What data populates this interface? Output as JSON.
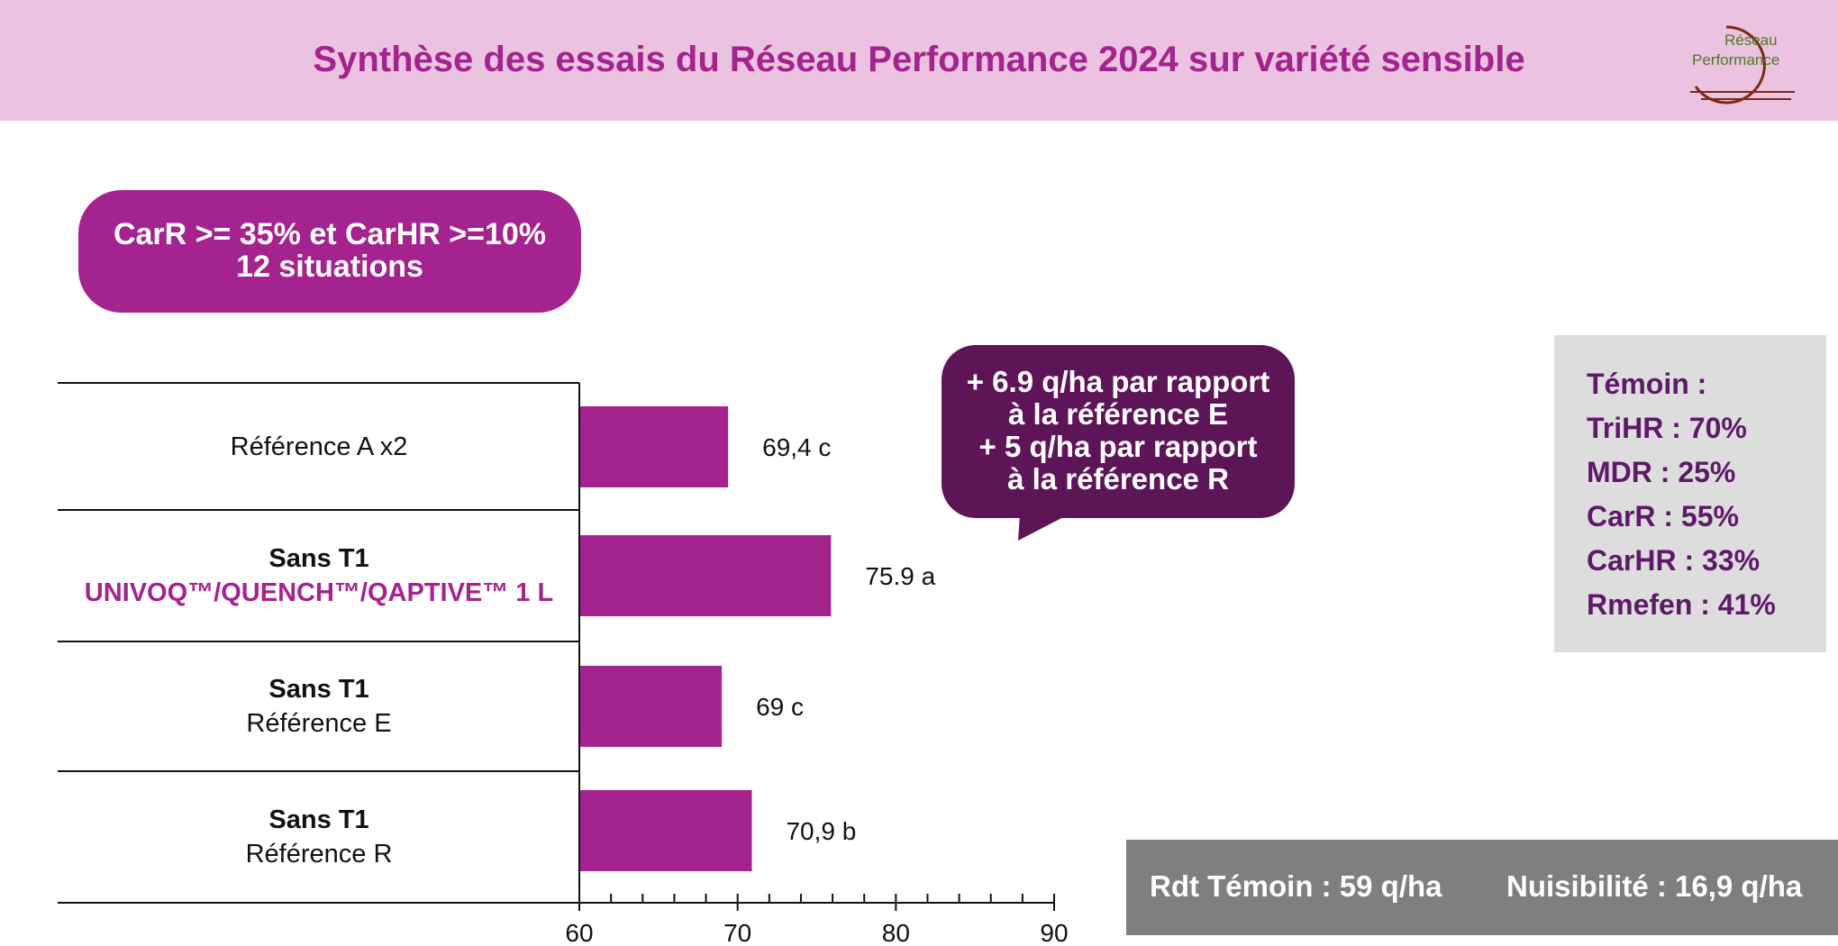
{
  "header": {
    "title": "Synthèse des essais du Réseau Performance 2024 sur variété sensible",
    "logo_text_top": "Réseau",
    "logo_text_bottom": "Performance"
  },
  "condition_box": {
    "line1": "CarR >= 35% et CarHR >=10%",
    "line2": "12 situations"
  },
  "rows": [
    {
      "line1": "Référence A x2",
      "line1_bold": false,
      "line2": "",
      "line2_style": ""
    },
    {
      "line1": "Sans T1",
      "line1_bold": true,
      "line2": "UNIVOQ™/QUENCH™/QAPTIVE™ 1 L",
      "line2_style": "accent"
    },
    {
      "line1": "Sans T1",
      "line1_bold": true,
      "line2": "Référence E",
      "line2_style": "normal"
    },
    {
      "line1": "Sans T1",
      "line1_bold": true,
      "line2": "Référence R",
      "line2_style": "normal"
    }
  ],
  "callout": {
    "line1": "+ 6.9 q/ha par rapport",
    "line2": "à la référence E",
    "line3": "+ 5 q/ha par rapport",
    "line4": "à la référence R"
  },
  "witness": {
    "title": "Témoin :",
    "items": [
      "TriHR : 70%",
      "MDR : 25%",
      "CarR : 55%",
      "CarHR : 33%",
      "Rmefen : 41%"
    ]
  },
  "footer": {
    "yield": "Rdt Témoin : 59 q/ha",
    "nuisance": "Nuisibilité : 16,9 q/ha"
  },
  "colors": {
    "accent": "#a4238f",
    "bar": "#a4238f",
    "callout": "#5e1558",
    "header_bg": "#ebc2df",
    "witness_text": "#5e1a68",
    "footer_bg": "#7f7f7f"
  },
  "chart_data": {
    "type": "bar",
    "orientation": "horizontal",
    "categories": [
      "Référence A x2",
      "Sans T1 UNIVOQ™/QUENCH™/QAPTIVE™ 1 L",
      "Sans T1 Référence E",
      "Sans T1 Référence R"
    ],
    "values": [
      69.4,
      75.9,
      69,
      70.9
    ],
    "data_labels": [
      "69,4 c",
      "75.9 a",
      "69 c",
      "70,9 b"
    ],
    "xlim": [
      60,
      90
    ],
    "x_ticks": [
      60,
      70,
      80,
      90
    ],
    "x_minor_step": 2,
    "grid": false,
    "legend": "none"
  }
}
